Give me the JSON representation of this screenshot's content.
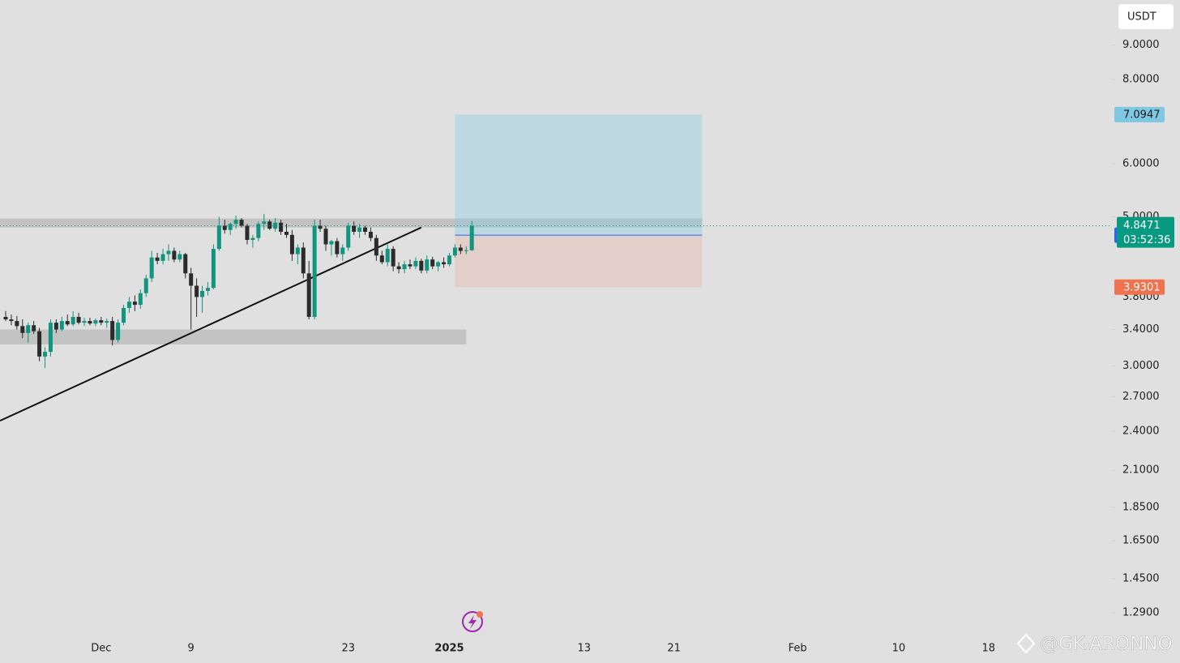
{
  "chart_data": {
    "type": "candlestick",
    "currency": "USDT",
    "log_scale": true,
    "up_color": "#11957f",
    "down_color": "#2b2b2b",
    "categories": [
      null,
      null,
      null,
      null,
      null,
      null,
      null,
      null,
      null,
      null,
      null,
      null,
      null,
      null,
      null,
      null,
      null,
      "Dec",
      null,
      null,
      null,
      null,
      null,
      null,
      null,
      null,
      null,
      null,
      null,
      null,
      null,
      null,
      null,
      "9",
      null,
      null,
      null,
      null,
      null,
      null,
      null,
      null,
      null,
      null,
      null,
      null,
      null,
      null,
      null,
      null,
      null,
      null,
      null,
      null,
      null,
      null,
      null,
      null,
      null,
      null,
      null,
      "23",
      null,
      null,
      null,
      null,
      null,
      null,
      null,
      null,
      null,
      null,
      null,
      null,
      null,
      null,
      null,
      null,
      null,
      "2025",
      null,
      null,
      null,
      null,
      null,
      null,
      null,
      null,
      null,
      null,
      null,
      null,
      null,
      null,
      null,
      null,
      null,
      null,
      null,
      null,
      null,
      null,
      null,
      "13",
      null,
      null,
      null,
      null,
      null,
      null,
      null,
      null,
      null,
      null,
      null,
      null,
      null,
      null,
      null,
      "21",
      null,
      null,
      null,
      null,
      null,
      null,
      null,
      null,
      null,
      null,
      null,
      null,
      null,
      null,
      null,
      null,
      null,
      null,
      null,
      null,
      null,
      "Feb",
      null,
      null,
      null,
      null,
      null,
      null,
      null,
      null,
      null,
      null,
      null,
      null,
      null,
      null,
      null,
      null,
      null,
      "10",
      null,
      null,
      null,
      null,
      null,
      null,
      null,
      null,
      null,
      null,
      null,
      null,
      null,
      null,
      null,
      "18",
      null,
      null,
      null,
      null,
      null,
      null,
      null,
      null,
      null,
      null,
      null,
      null,
      null,
      null,
      null,
      null,
      null,
      null,
      null,
      null,
      null
    ],
    "open": [
      3.55,
      3.52,
      3.5,
      3.44,
      3.36,
      3.45,
      3.38,
      3.1,
      3.15,
      3.48,
      3.4,
      3.5,
      3.46,
      3.55,
      3.48,
      3.5,
      3.47,
      3.51,
      3.48,
      3.5,
      3.28,
      3.48,
      3.66,
      3.74,
      3.7,
      3.85,
      4.05,
      4.35,
      4.3,
      4.4,
      4.45,
      4.32,
      4.4,
      4.12,
      3.95,
      3.8,
      3.88,
      3.92,
      4.48,
      4.85,
      4.78,
      4.88,
      4.95,
      4.85,
      4.62,
      4.65,
      4.88,
      4.92,
      4.8,
      4.9,
      4.75,
      4.7,
      4.4,
      4.5,
      4.12,
      3.55,
      4.85,
      4.8,
      4.55,
      4.6,
      4.4,
      4.5,
      4.85,
      4.75,
      4.82,
      4.75,
      4.65,
      4.38,
      4.28,
      4.48,
      4.22,
      4.18,
      4.25,
      4.22,
      4.3,
      4.16,
      4.32,
      4.22,
      4.28,
      4.25,
      4.38,
      4.5,
      4.45,
      4.46,
      null,
      null,
      null,
      null,
      null,
      null,
      null,
      null,
      null,
      null,
      null,
      null,
      null,
      null,
      null,
      null,
      null,
      null,
      null,
      null,
      null,
      null,
      null,
      null,
      null,
      null,
      null,
      null,
      null,
      null,
      null,
      null,
      null,
      null,
      null,
      null,
      null,
      null,
      null,
      null,
      null,
      null,
      null,
      null,
      null,
      null,
      null,
      null,
      null,
      null,
      null,
      null,
      null,
      null,
      null,
      null,
      null,
      null,
      null,
      null,
      null,
      null,
      null,
      null,
      null,
      null,
      null,
      null,
      null,
      null,
      null,
      null,
      null,
      null,
      null,
      null,
      null,
      null,
      null,
      null,
      null,
      null,
      null,
      null,
      null,
      null,
      null,
      null,
      null,
      null,
      null,
      null,
      null,
      null,
      null,
      null,
      null,
      null,
      null,
      null,
      null,
      null,
      null,
      null,
      null,
      null,
      null,
      null,
      null,
      null,
      null,
      null,
      null
    ],
    "high": [
      3.62,
      3.58,
      3.56,
      3.52,
      3.48,
      3.5,
      3.42,
      3.2,
      3.52,
      3.52,
      3.55,
      3.58,
      3.62,
      3.6,
      3.54,
      3.54,
      3.53,
      3.55,
      3.53,
      3.55,
      3.52,
      3.7,
      3.8,
      3.82,
      3.9,
      4.1,
      4.45,
      4.42,
      4.48,
      4.55,
      4.5,
      4.45,
      4.42,
      4.2,
      4.05,
      3.95,
      4.0,
      4.55,
      5.0,
      4.95,
      4.9,
      5.02,
      4.98,
      4.88,
      4.7,
      4.92,
      5.05,
      4.95,
      4.98,
      4.95,
      4.88,
      4.78,
      4.55,
      4.58,
      4.3,
      4.95,
      4.95,
      4.85,
      4.62,
      4.65,
      4.55,
      4.9,
      4.92,
      4.88,
      4.85,
      4.82,
      4.7,
      4.45,
      4.55,
      4.52,
      4.28,
      4.3,
      4.32,
      4.35,
      4.33,
      4.38,
      4.36,
      4.3,
      4.35,
      4.42,
      4.55,
      4.55,
      4.52,
      4.93,
      null,
      null,
      null,
      null,
      null,
      null,
      null,
      null,
      null,
      null,
      null,
      null,
      null,
      null,
      null,
      null,
      null,
      null,
      null,
      null,
      null,
      null,
      null,
      null,
      null,
      null,
      null,
      null,
      null,
      null,
      null,
      null,
      null,
      null,
      null,
      null,
      null,
      null,
      null,
      null,
      null,
      null,
      null,
      null,
      null,
      null,
      null,
      null,
      null,
      null,
      null,
      null,
      null,
      null,
      null,
      null,
      null,
      null,
      null,
      null,
      null,
      null,
      null,
      null,
      null,
      null,
      null,
      null,
      null,
      null,
      null,
      null,
      null,
      null,
      null,
      null,
      null,
      null,
      null,
      null,
      null,
      null,
      null,
      null,
      null,
      null,
      null,
      null,
      null,
      null,
      null,
      null,
      null,
      null,
      null,
      null,
      null,
      null,
      null,
      null,
      null,
      null,
      null,
      null,
      null,
      null,
      null,
      null,
      null,
      null,
      null,
      null,
      null
    ],
    "low": [
      3.5,
      3.45,
      3.4,
      3.3,
      3.25,
      3.35,
      3.05,
      2.98,
      3.1,
      3.36,
      3.38,
      3.44,
      3.44,
      3.46,
      3.44,
      3.45,
      3.44,
      3.45,
      3.42,
      3.22,
      3.25,
      3.45,
      3.6,
      3.62,
      3.65,
      3.8,
      4.0,
      4.25,
      4.25,
      4.3,
      4.28,
      4.28,
      4.05,
      3.4,
      3.55,
      3.6,
      3.82,
      3.9,
      4.45,
      4.72,
      4.7,
      4.8,
      4.82,
      4.55,
      4.5,
      4.6,
      4.78,
      4.78,
      4.75,
      4.7,
      4.65,
      4.3,
      4.25,
      4.05,
      3.52,
      3.52,
      4.75,
      4.45,
      4.38,
      4.35,
      4.3,
      4.45,
      4.7,
      4.65,
      4.7,
      4.6,
      4.3,
      4.25,
      4.22,
      4.15,
      4.12,
      4.12,
      4.18,
      4.18,
      4.12,
      4.12,
      4.18,
      4.15,
      4.2,
      4.22,
      4.35,
      4.4,
      4.4,
      4.45,
      null,
      null,
      null,
      null,
      null,
      null,
      null,
      null,
      null,
      null,
      null,
      null,
      null,
      null,
      null,
      null,
      null,
      null,
      null,
      null,
      null,
      null,
      null,
      null,
      null,
      null,
      null,
      null,
      null,
      null,
      null,
      null,
      null,
      null,
      null,
      null,
      null,
      null,
      null,
      null,
      null,
      null,
      null,
      null,
      null,
      null,
      null,
      null,
      null,
      null,
      null,
      null,
      null,
      null,
      null,
      null,
      null,
      null,
      null,
      null,
      null,
      null,
      null,
      null,
      null,
      null,
      null,
      null,
      null,
      null,
      null,
      null,
      null,
      null,
      null,
      null,
      null,
      null,
      null,
      null,
      null,
      null,
      null,
      null,
      null,
      null,
      null,
      null,
      null,
      null,
      null,
      null,
      null,
      null,
      null,
      null,
      null,
      null,
      null,
      null,
      null,
      null,
      null,
      null,
      null,
      null,
      null,
      null,
      null,
      null,
      null,
      null,
      null
    ],
    "close": [
      3.52,
      3.5,
      3.44,
      3.36,
      3.45,
      3.38,
      3.1,
      3.15,
      3.48,
      3.4,
      3.5,
      3.46,
      3.55,
      3.48,
      3.5,
      3.47,
      3.51,
      3.48,
      3.5,
      3.28,
      3.48,
      3.66,
      3.74,
      3.7,
      3.85,
      4.05,
      4.35,
      4.3,
      4.4,
      4.45,
      4.32,
      4.4,
      4.12,
      3.95,
      3.8,
      3.88,
      3.92,
      4.48,
      4.85,
      4.78,
      4.88,
      4.95,
      4.85,
      4.62,
      4.65,
      4.88,
      4.92,
      4.8,
      4.9,
      4.75,
      4.7,
      4.4,
      4.5,
      4.12,
      3.55,
      4.85,
      4.8,
      4.55,
      4.6,
      4.4,
      4.5,
      4.85,
      4.75,
      4.82,
      4.75,
      4.65,
      4.38,
      4.28,
      4.48,
      4.22,
      4.18,
      4.25,
      4.22,
      4.3,
      4.16,
      4.32,
      4.22,
      4.28,
      4.25,
      4.38,
      4.5,
      4.45,
      4.46,
      4.8471,
      null,
      null,
      null,
      null,
      null,
      null,
      null,
      null,
      null,
      null,
      null,
      null,
      null,
      null,
      null,
      null,
      null,
      null,
      null,
      null,
      null,
      null,
      null,
      null,
      null,
      null,
      null,
      null,
      null,
      null,
      null,
      null,
      null,
      null,
      null,
      null,
      null,
      null,
      null,
      null,
      null,
      null,
      null,
      null,
      null,
      null,
      null,
      null,
      null,
      null,
      null,
      null,
      null,
      null,
      null,
      null,
      null,
      null,
      null,
      null,
      null,
      null,
      null,
      null,
      null,
      null,
      null,
      null,
      null,
      null,
      null,
      null,
      null,
      null,
      null,
      null,
      null,
      null,
      null,
      null,
      null,
      null,
      null,
      null,
      null,
      null,
      null,
      null,
      null,
      null,
      null,
      null,
      null,
      null,
      null,
      null,
      null,
      null,
      null,
      null,
      null,
      null,
      null,
      null,
      null,
      null,
      null,
      null,
      null,
      null,
      null,
      null,
      null
    ],
    "ylim": [
      1.19,
      10.5
    ],
    "yticks": [
      {
        "value": 9,
        "label": "9.0000"
      },
      {
        "value": 8,
        "label": "8.0000"
      },
      {
        "value": 6,
        "label": "6.0000"
      },
      {
        "value": 5,
        "label": "5.0000"
      },
      {
        "value": 3.8,
        "label": "3.8000"
      },
      {
        "value": 3.4,
        "label": "3.4000"
      },
      {
        "value": 3,
        "label": "3.0000"
      },
      {
        "value": 2.7,
        "label": "2.7000"
      },
      {
        "value": 2.4,
        "label": "2.4000"
      },
      {
        "value": 2.1,
        "label": "2.1000"
      },
      {
        "value": 1.85,
        "label": "1.8500"
      },
      {
        "value": 1.65,
        "label": "1.6500"
      },
      {
        "value": 1.45,
        "label": "1.4500"
      },
      {
        "value": 1.29,
        "label": "1.2900"
      }
    ],
    "zones": [
      {
        "start_category": 0,
        "end_category": 124,
        "low": 4.82,
        "high": 4.97,
        "color": "#bdbdbd"
      },
      {
        "start_category": 0,
        "end_category": 82,
        "low": 3.23,
        "high": 3.4,
        "color": "#bdbdbd"
      }
    ],
    "trendline": {
      "start_category": 0,
      "start_price": 2.51,
      "end_category": 74,
      "end_price": 4.82,
      "color": "#111111"
    },
    "position": {
      "start_category": 80,
      "end_category": 124,
      "entry": 4.6949,
      "target": 7.0947,
      "stop": 3.9301,
      "entry_color": "#2962ff",
      "target_color": "#7ec8e3",
      "stop_color": "#f07350"
    },
    "last_price": 4.8471,
    "last_price_color": "#089981",
    "countdown": "03:52:36",
    "watermark": "@GK-ARONNO"
  }
}
